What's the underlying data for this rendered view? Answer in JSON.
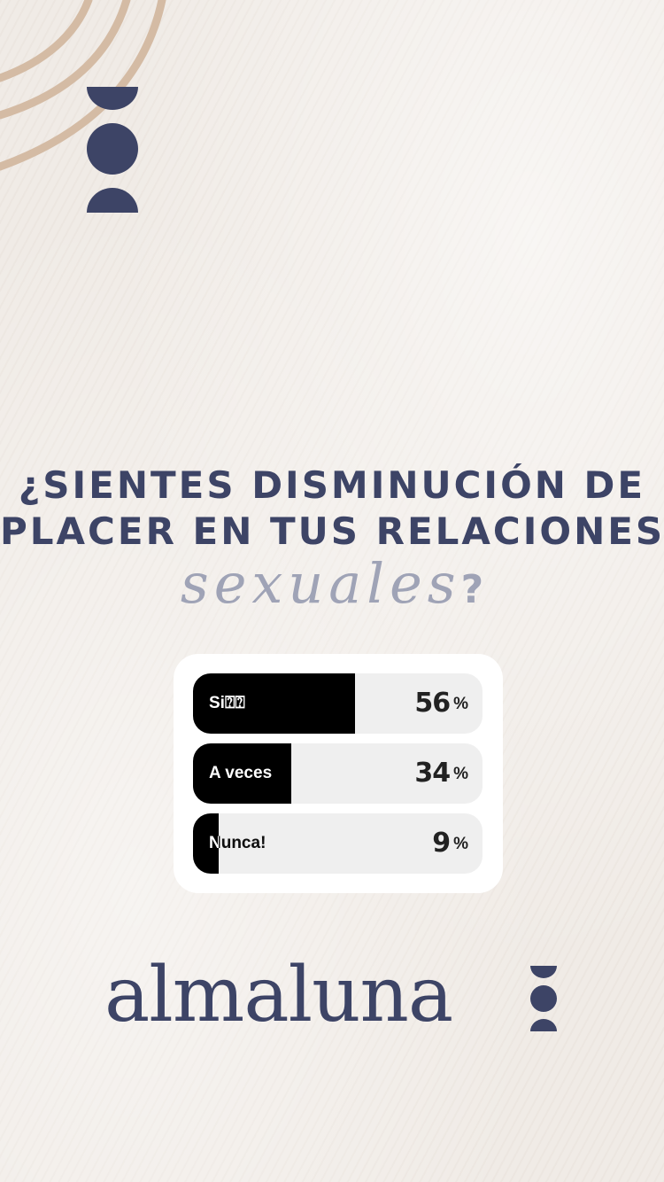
{
  "question": {
    "line1": "¿SIENTES DISMINUCIÓN DE",
    "line2": "PLACER EN TUS RELACIONES",
    "script_word": "sexuales",
    "script_end": "?"
  },
  "poll": {
    "options": [
      {
        "label": "Si⍰⍰",
        "percent": 56,
        "percent_text": "56"
      },
      {
        "label": "A veces",
        "percent": 34,
        "percent_text": "34"
      },
      {
        "label": "Nunca!",
        "percent": 9,
        "percent_text": "9"
      }
    ],
    "percent_sign": "%"
  },
  "brand": {
    "name": "almaluna",
    "logo_icon": "moon-phases-icon"
  },
  "colors": {
    "navy": "#3d4466",
    "beige_arc": "#d4bba4",
    "script_gray": "#9fa3b6",
    "poll_fill": "#000000",
    "poll_track": "#efefef"
  }
}
